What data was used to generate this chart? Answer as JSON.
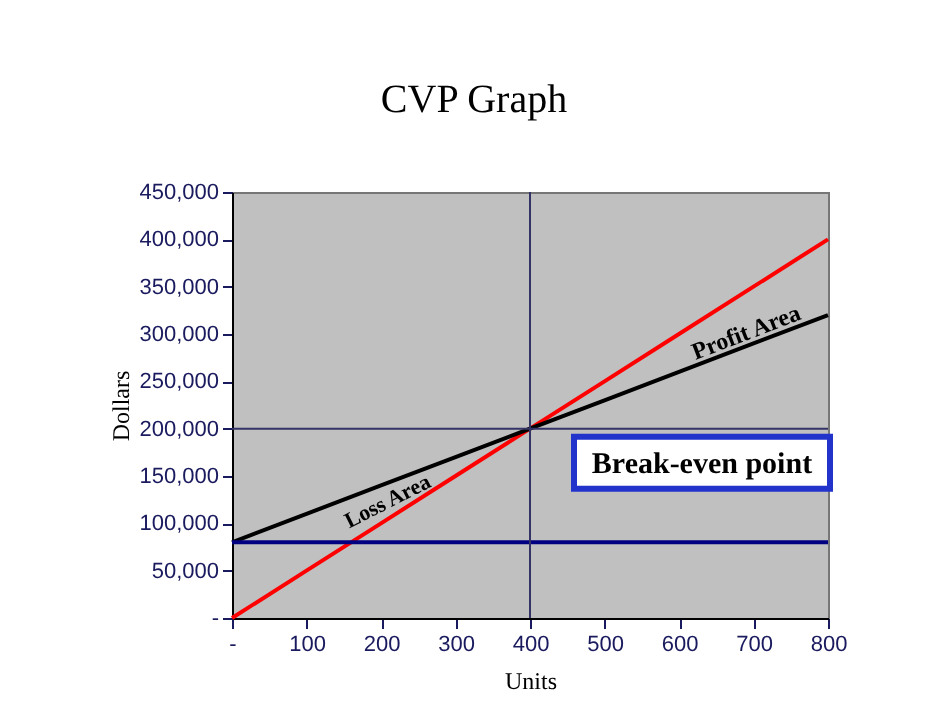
{
  "chart_data": {
    "type": "line",
    "title": "CVP Graph",
    "xlabel": "Units",
    "ylabel": "Dollars",
    "x": [
      0,
      100,
      200,
      300,
      400,
      500,
      600,
      700,
      800
    ],
    "series": [
      {
        "color": "#ff0000",
        "values": [
          0,
          50000,
          100000,
          150000,
          200000,
          250000,
          300000,
          350000,
          400000
        ]
      },
      {
        "color": "#000000",
        "values": [
          80000,
          110000,
          140000,
          170000,
          200000,
          230000,
          260000,
          290000,
          320000
        ]
      },
      {
        "color": "#000080",
        "values": [
          80000,
          80000,
          80000,
          80000,
          80000,
          80000,
          80000,
          80000,
          80000
        ]
      }
    ],
    "xlim": [
      0,
      800
    ],
    "xticks": [
      {
        "value": 0,
        "label": "-"
      },
      100,
      200,
      300,
      400,
      500,
      600,
      700,
      800
    ],
    "ylim": [
      0,
      450000
    ],
    "yticks": [
      {
        "value": 0,
        "label": "-"
      },
      {
        "value": 50000,
        "label": "50,000"
      },
      {
        "value": 100000,
        "label": "100,000"
      },
      {
        "value": 150000,
        "label": "150,000"
      },
      {
        "value": 200000,
        "label": "200,000"
      },
      {
        "value": 250000,
        "label": "250,000"
      },
      {
        "value": 300000,
        "label": "300,000"
      },
      {
        "value": 350000,
        "label": "350,000"
      },
      {
        "value": 400000,
        "label": "400,000"
      },
      {
        "value": 450000,
        "label": "450,000"
      }
    ],
    "ref_lines": [
      {
        "axis": "x",
        "value": 400,
        "color": "#333366"
      },
      {
        "axis": "y",
        "value": 200000,
        "color": "#333366"
      }
    ],
    "annotations": [
      {
        "text": "Break-even point",
        "x": 400,
        "y": 200000
      },
      "Profit Area",
      "Loss Area"
    ],
    "grid": false,
    "legend": false,
    "marker": "none",
    "line_style": "solid"
  }
}
